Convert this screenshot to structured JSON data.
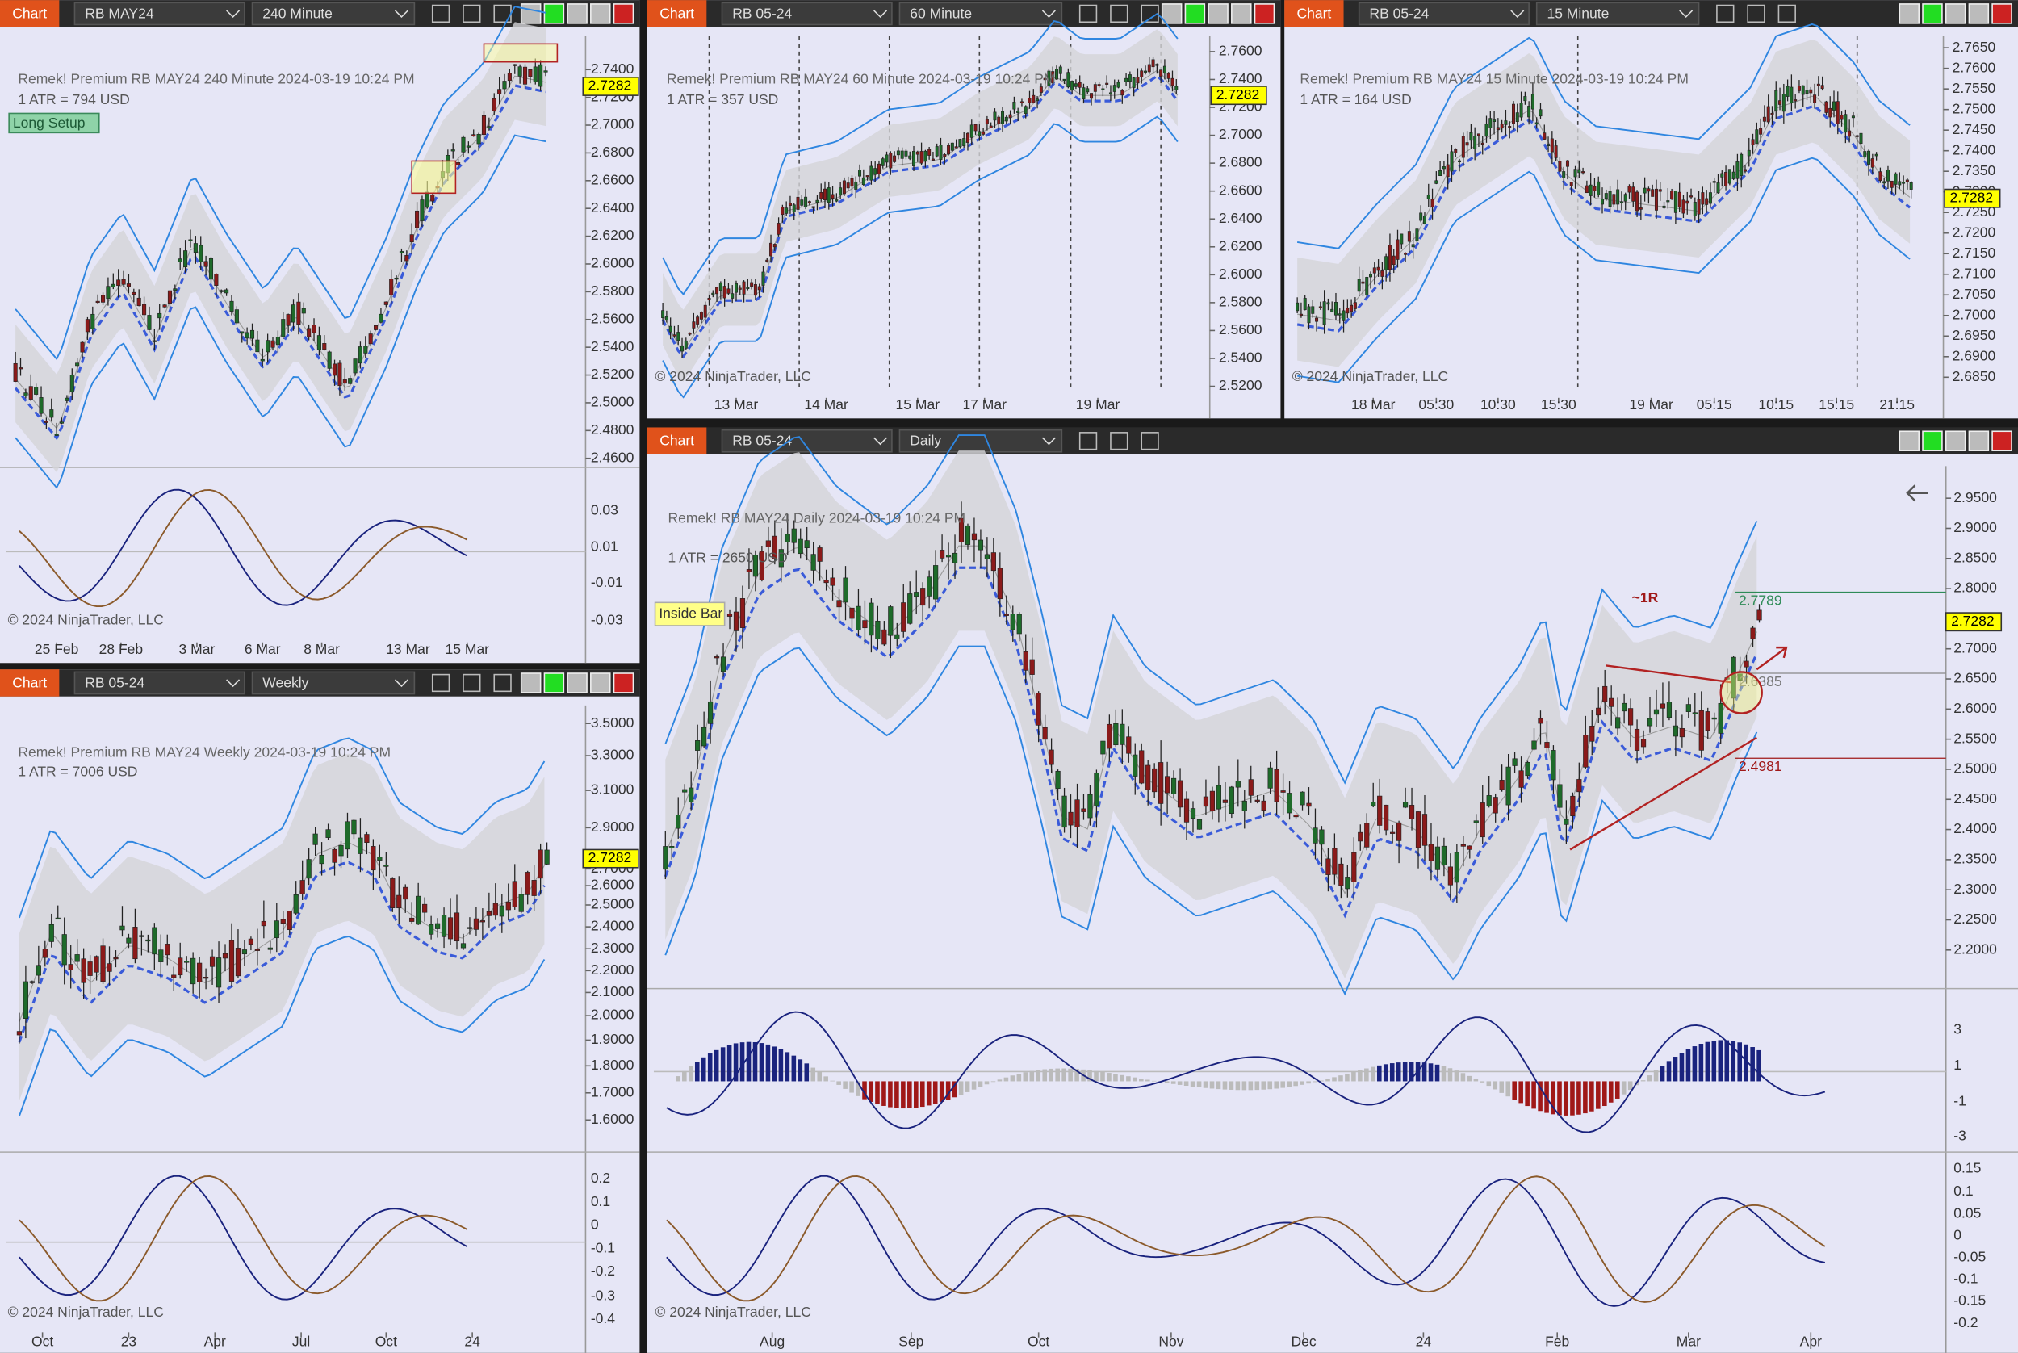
{
  "panels": [
    {
      "header": {
        "label": "Chart",
        "instrument": "RB MAY24",
        "interval": "240 Minute"
      },
      "title": "Remek!  Premium  RB MAY24  240 Minute  2024-03-19 10:24 PM",
      "atr": "1 ATR = 794 USD",
      "annotations": [
        "Long Setup"
      ],
      "price_labels": [
        "2.7400",
        "2.7200",
        "2.7000",
        "2.6800",
        "2.6600",
        "2.6400",
        "2.6200",
        "2.6000",
        "2.5800",
        "2.5600",
        "2.5400",
        "2.5200",
        "2.5000",
        "2.4800",
        "2.4600"
      ],
      "current_price": "2.7282",
      "indicator_labels": [
        "0.03",
        "0.01",
        "-0.01",
        "-0.03"
      ],
      "date_labels": [
        "25 Feb",
        "28 Feb",
        "3 Mar",
        "6 Mar",
        "8 Mar",
        "13 Mar",
        "15 Mar"
      ],
      "copyright": "© 2024 NinjaTrader, LLC"
    },
    {
      "header": {
        "label": "Chart",
        "instrument": "RB 05-24",
        "interval": "60 Minute"
      },
      "title": "Remek!  Premium  RB MAY24  60 Minute  2024-03-19 10:24 PM",
      "atr": "1 ATR = 357 USD",
      "price_labels": [
        "2.7600",
        "2.7400",
        "2.7200",
        "2.7000",
        "2.6800",
        "2.6600",
        "2.6400",
        "2.6200",
        "2.6000",
        "2.5800",
        "2.5600",
        "2.5400",
        "2.5200"
      ],
      "current_price": "2.7282",
      "date_labels": [
        "13 Mar",
        "14 Mar",
        "15 Mar",
        "17 Mar",
        "19 Mar"
      ],
      "copyright": "© 2024 NinjaTrader, LLC"
    },
    {
      "header": {
        "label": "Chart",
        "instrument": "RB 05-24",
        "interval": "15 Minute"
      },
      "title": "Remek!  Premium  RB MAY24  15 Minute  2024-03-19 10:24 PM",
      "atr": "1 ATR = 164 USD",
      "price_labels": [
        "2.7650",
        "2.7600",
        "2.7550",
        "2.7500",
        "2.7450",
        "2.7400",
        "2.7350",
        "2.7300",
        "2.7250",
        "2.7200",
        "2.7150",
        "2.7100",
        "2.7050",
        "2.7000",
        "2.6950",
        "2.6900",
        "2.6850"
      ],
      "current_price": "2.7282",
      "date_labels": [
        "18 Mar",
        "05:30",
        "10:30",
        "15:30",
        "19 Mar",
        "05:15",
        "10:15",
        "15:15",
        "21:15"
      ],
      "copyright": "© 2024 NinjaTrader, LLC"
    },
    {
      "header": {
        "label": "Chart",
        "instrument": "RB 05-24",
        "interval": "Daily"
      },
      "title": "Remek!  RB MAY24  Daily  2024-03-19 10:24 PM",
      "atr": "1 ATR = 2650 USD",
      "annotations": [
        "Inside Bar",
        "~1R",
        "2.7789",
        "2.6385",
        "2.4981"
      ],
      "price_labels": [
        "2.9500",
        "2.9000",
        "2.8500",
        "2.8000",
        "2.7500",
        "2.7000",
        "2.6500",
        "2.6000",
        "2.5500",
        "2.5000",
        "2.4500",
        "2.4000",
        "2.3500",
        "2.3000",
        "2.2500",
        "2.2000"
      ],
      "current_price": "2.7282",
      "indicator_labels": [
        "3",
        "1",
        "-1",
        "-3"
      ],
      "indicator2_labels": [
        "0.15",
        "0.1",
        "0.05",
        "0",
        "-0.05",
        "-0.1",
        "-0.15",
        "-0.2"
      ],
      "date_labels": [
        "Aug",
        "Sep",
        "Oct",
        "Nov",
        "Dec",
        "24",
        "Feb",
        "Mar",
        "Apr"
      ],
      "copyright": "© 2024 NinjaTrader, LLC"
    },
    {
      "header": {
        "label": "Chart",
        "instrument": "RB 05-24",
        "interval": "Weekly"
      },
      "title": "Remek!  Premium  RB MAY24  Weekly  2024-03-19 10:24 PM",
      "atr": "1 ATR = 7006 USD",
      "price_labels": [
        "3.5000",
        "3.3000",
        "3.1000",
        "2.9000",
        "2.7000",
        "2.6000",
        "2.5000",
        "2.4000",
        "2.3000",
        "2.2000",
        "2.1000",
        "2.0000",
        "1.9000",
        "1.8000",
        "1.7000",
        "1.6000"
      ],
      "current_price": "2.7282",
      "indicator_labels": [
        "0.2",
        "0.1",
        "0",
        "-0.1",
        "-0.2",
        "-0.3",
        "-0.4"
      ],
      "date_labels": [
        "Oct",
        "23",
        "Apr",
        "Jul",
        "Oct",
        "24"
      ],
      "copyright": "© 2024 NinjaTrader, LLC"
    }
  ]
}
